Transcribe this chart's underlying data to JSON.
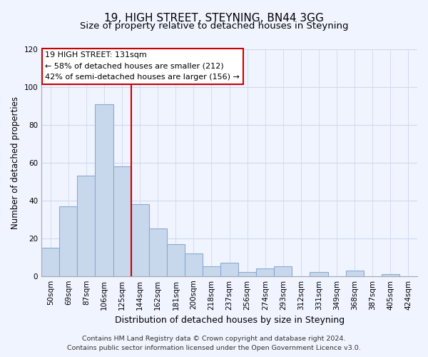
{
  "title": "19, HIGH STREET, STEYNING, BN44 3GG",
  "subtitle": "Size of property relative to detached houses in Steyning",
  "xlabel": "Distribution of detached houses by size in Steyning",
  "ylabel": "Number of detached properties",
  "categories": [
    "50sqm",
    "69sqm",
    "87sqm",
    "106sqm",
    "125sqm",
    "144sqm",
    "162sqm",
    "181sqm",
    "200sqm",
    "218sqm",
    "237sqm",
    "256sqm",
    "274sqm",
    "293sqm",
    "312sqm",
    "331sqm",
    "349sqm",
    "368sqm",
    "387sqm",
    "405sqm",
    "424sqm"
  ],
  "values": [
    15,
    37,
    53,
    91,
    58,
    38,
    25,
    17,
    12,
    5,
    7,
    2,
    4,
    5,
    0,
    2,
    0,
    3,
    0,
    1,
    0
  ],
  "bar_color": "#c8d8ec",
  "bar_edge_color": "#8aaad0",
  "vline_color": "#cc0000",
  "annotation_title": "19 HIGH STREET: 131sqm",
  "annotation_line1": "← 58% of detached houses are smaller (212)",
  "annotation_line2": "42% of semi-detached houses are larger (156) →",
  "annotation_box_color": "white",
  "annotation_box_edge": "#cc0000",
  "ylim": [
    0,
    120
  ],
  "yticks": [
    0,
    20,
    40,
    60,
    80,
    100,
    120
  ],
  "footer_line1": "Contains HM Land Registry data © Crown copyright and database right 2024.",
  "footer_line2": "Contains public sector information licensed under the Open Government Licence v3.0.",
  "background_color": "#f0f4ff",
  "grid_color": "#d0d8ee",
  "title_fontsize": 11,
  "subtitle_fontsize": 9.5,
  "ylabel_fontsize": 8.5,
  "xlabel_fontsize": 9,
  "tick_fontsize": 7.5,
  "footer_fontsize": 6.8,
  "vline_xindex": 4
}
